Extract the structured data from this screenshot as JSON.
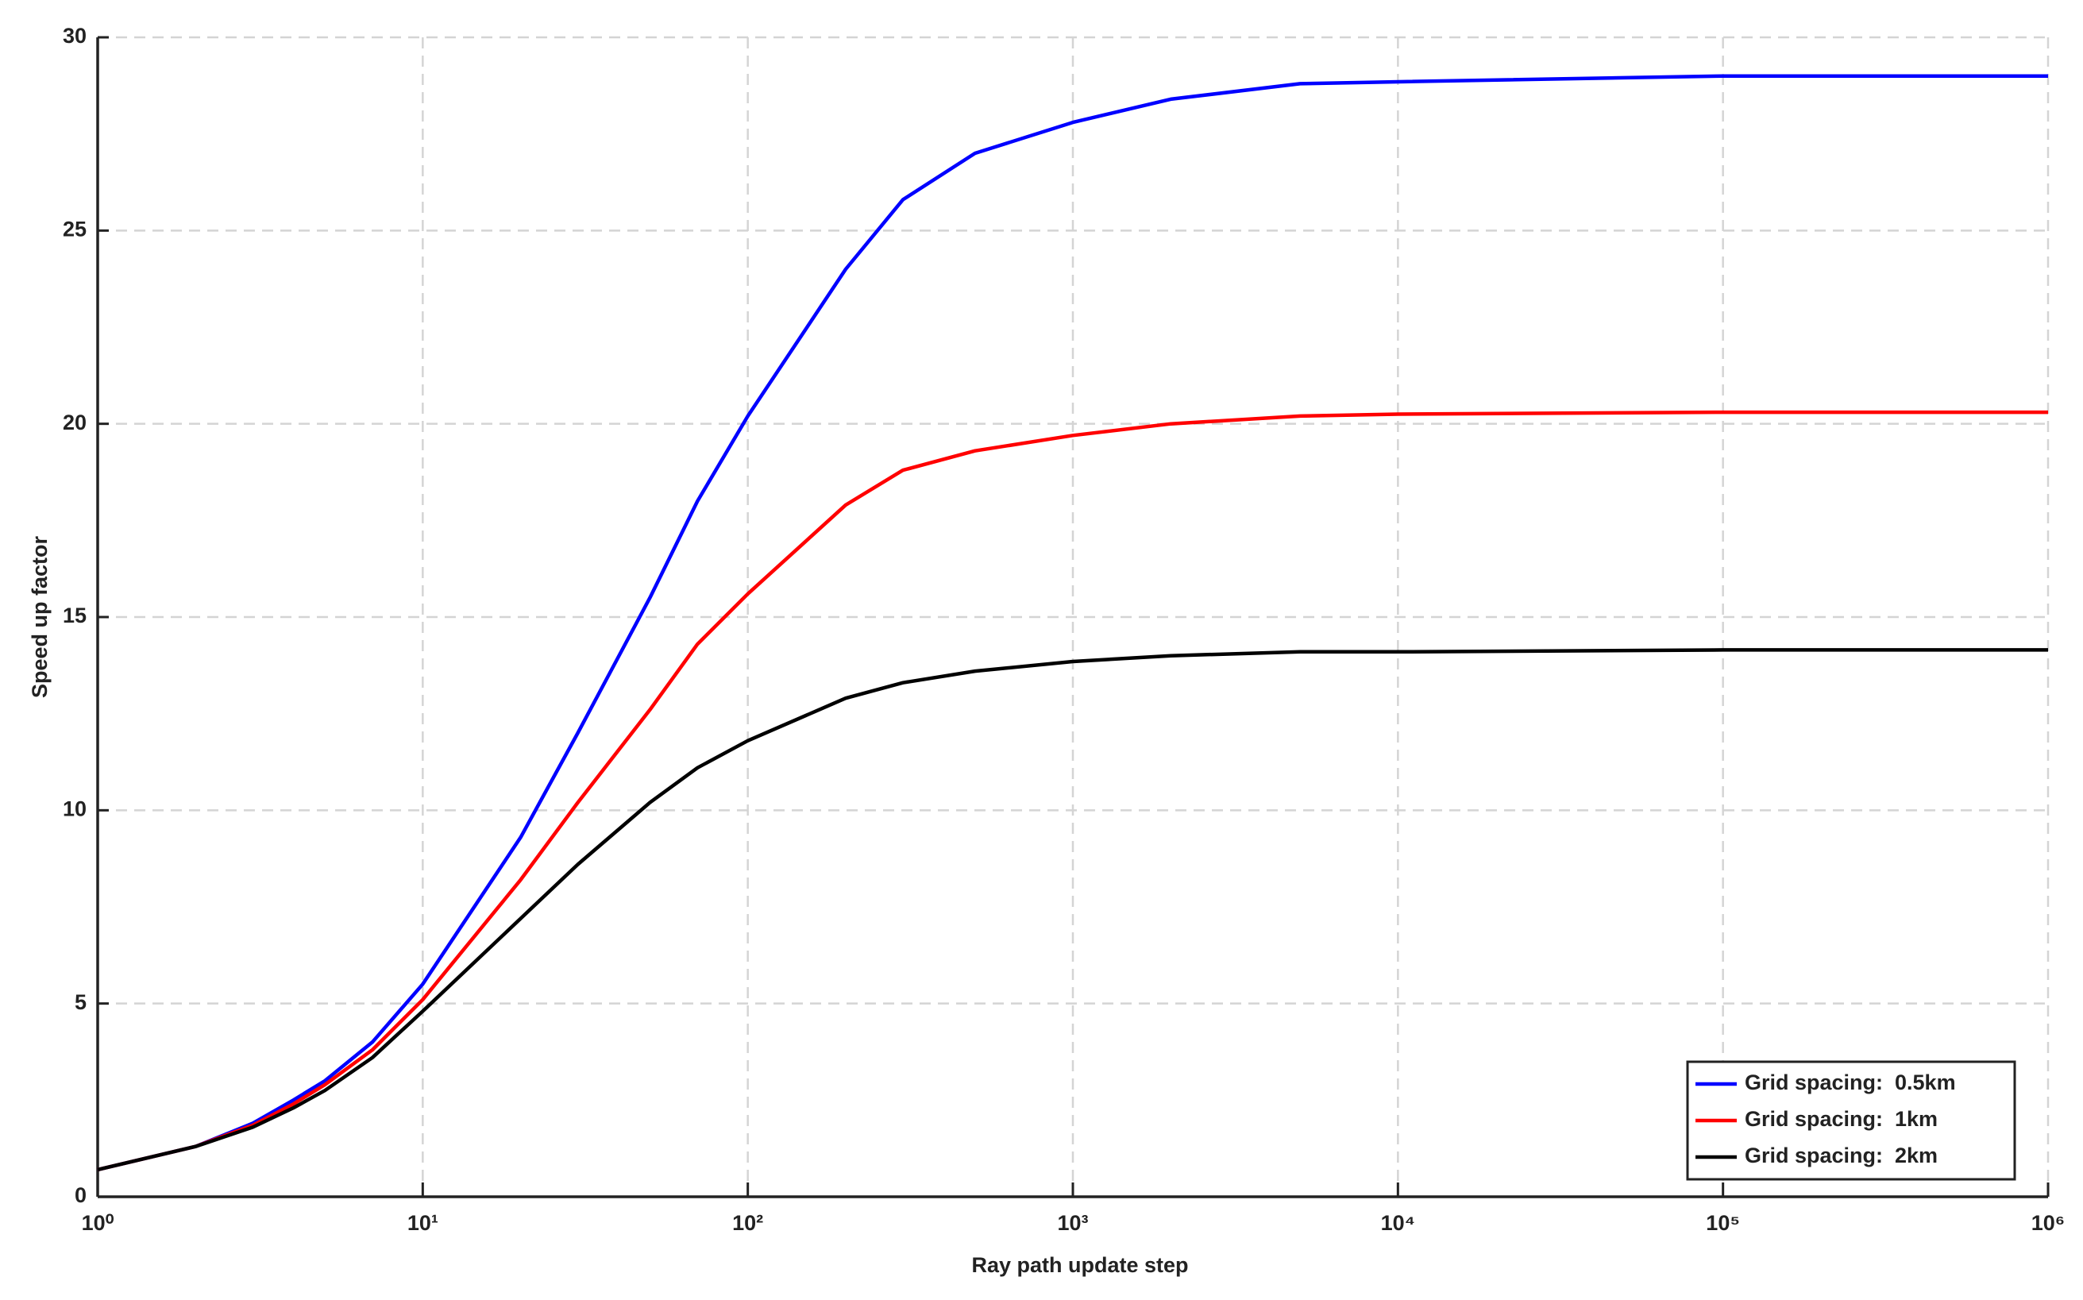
{
  "chart_data": {
    "type": "line",
    "x_label": "Ray path update step",
    "y_label": "Speed up factor",
    "x": [
      1,
      2,
      3,
      4,
      5,
      7,
      10,
      20,
      30,
      50,
      70,
      100,
      200,
      300,
      500,
      1000,
      2000,
      5000,
      10000,
      100000,
      1000000
    ],
    "series": [
      {
        "name": "Grid spacing:  0.5km",
        "color": "#0000ff",
        "values": [
          0.7,
          1.3,
          1.9,
          2.5,
          3.0,
          4.0,
          5.5,
          9.3,
          12.0,
          15.5,
          18.0,
          20.2,
          24.0,
          25.8,
          27.0,
          27.8,
          28.4,
          28.8,
          28.85,
          29.0,
          29.0
        ]
      },
      {
        "name": "Grid spacing:  1km",
        "color": "#ff0000",
        "values": [
          0.7,
          1.3,
          1.85,
          2.4,
          2.9,
          3.8,
          5.1,
          8.2,
          10.2,
          12.6,
          14.3,
          15.6,
          17.9,
          18.8,
          19.3,
          19.7,
          20.0,
          20.2,
          20.25,
          20.3,
          20.3
        ]
      },
      {
        "name": "Grid spacing:  2km",
        "color": "#000000",
        "values": [
          0.7,
          1.3,
          1.8,
          2.3,
          2.75,
          3.6,
          4.8,
          7.2,
          8.6,
          10.2,
          11.1,
          11.8,
          12.9,
          13.3,
          13.6,
          13.85,
          14.0,
          14.1,
          14.1,
          14.15,
          14.15
        ]
      }
    ],
    "x_log": true,
    "xlim": [
      1,
      1000000
    ],
    "xticks": [
      {
        "value": 1,
        "label": "10⁰"
      },
      {
        "value": 10,
        "label": "10¹"
      },
      {
        "value": 100,
        "label": "10²"
      },
      {
        "value": 1000,
        "label": "10³"
      },
      {
        "value": 10000,
        "label": "10⁴"
      },
      {
        "value": 100000,
        "label": "10⁵"
      },
      {
        "value": 1000000,
        "label": "10⁶"
      }
    ],
    "ylim": [
      0,
      30
    ],
    "yticks": [
      0,
      5,
      10,
      15,
      20,
      25,
      30
    ],
    "grid": true,
    "legend": "lower right"
  }
}
